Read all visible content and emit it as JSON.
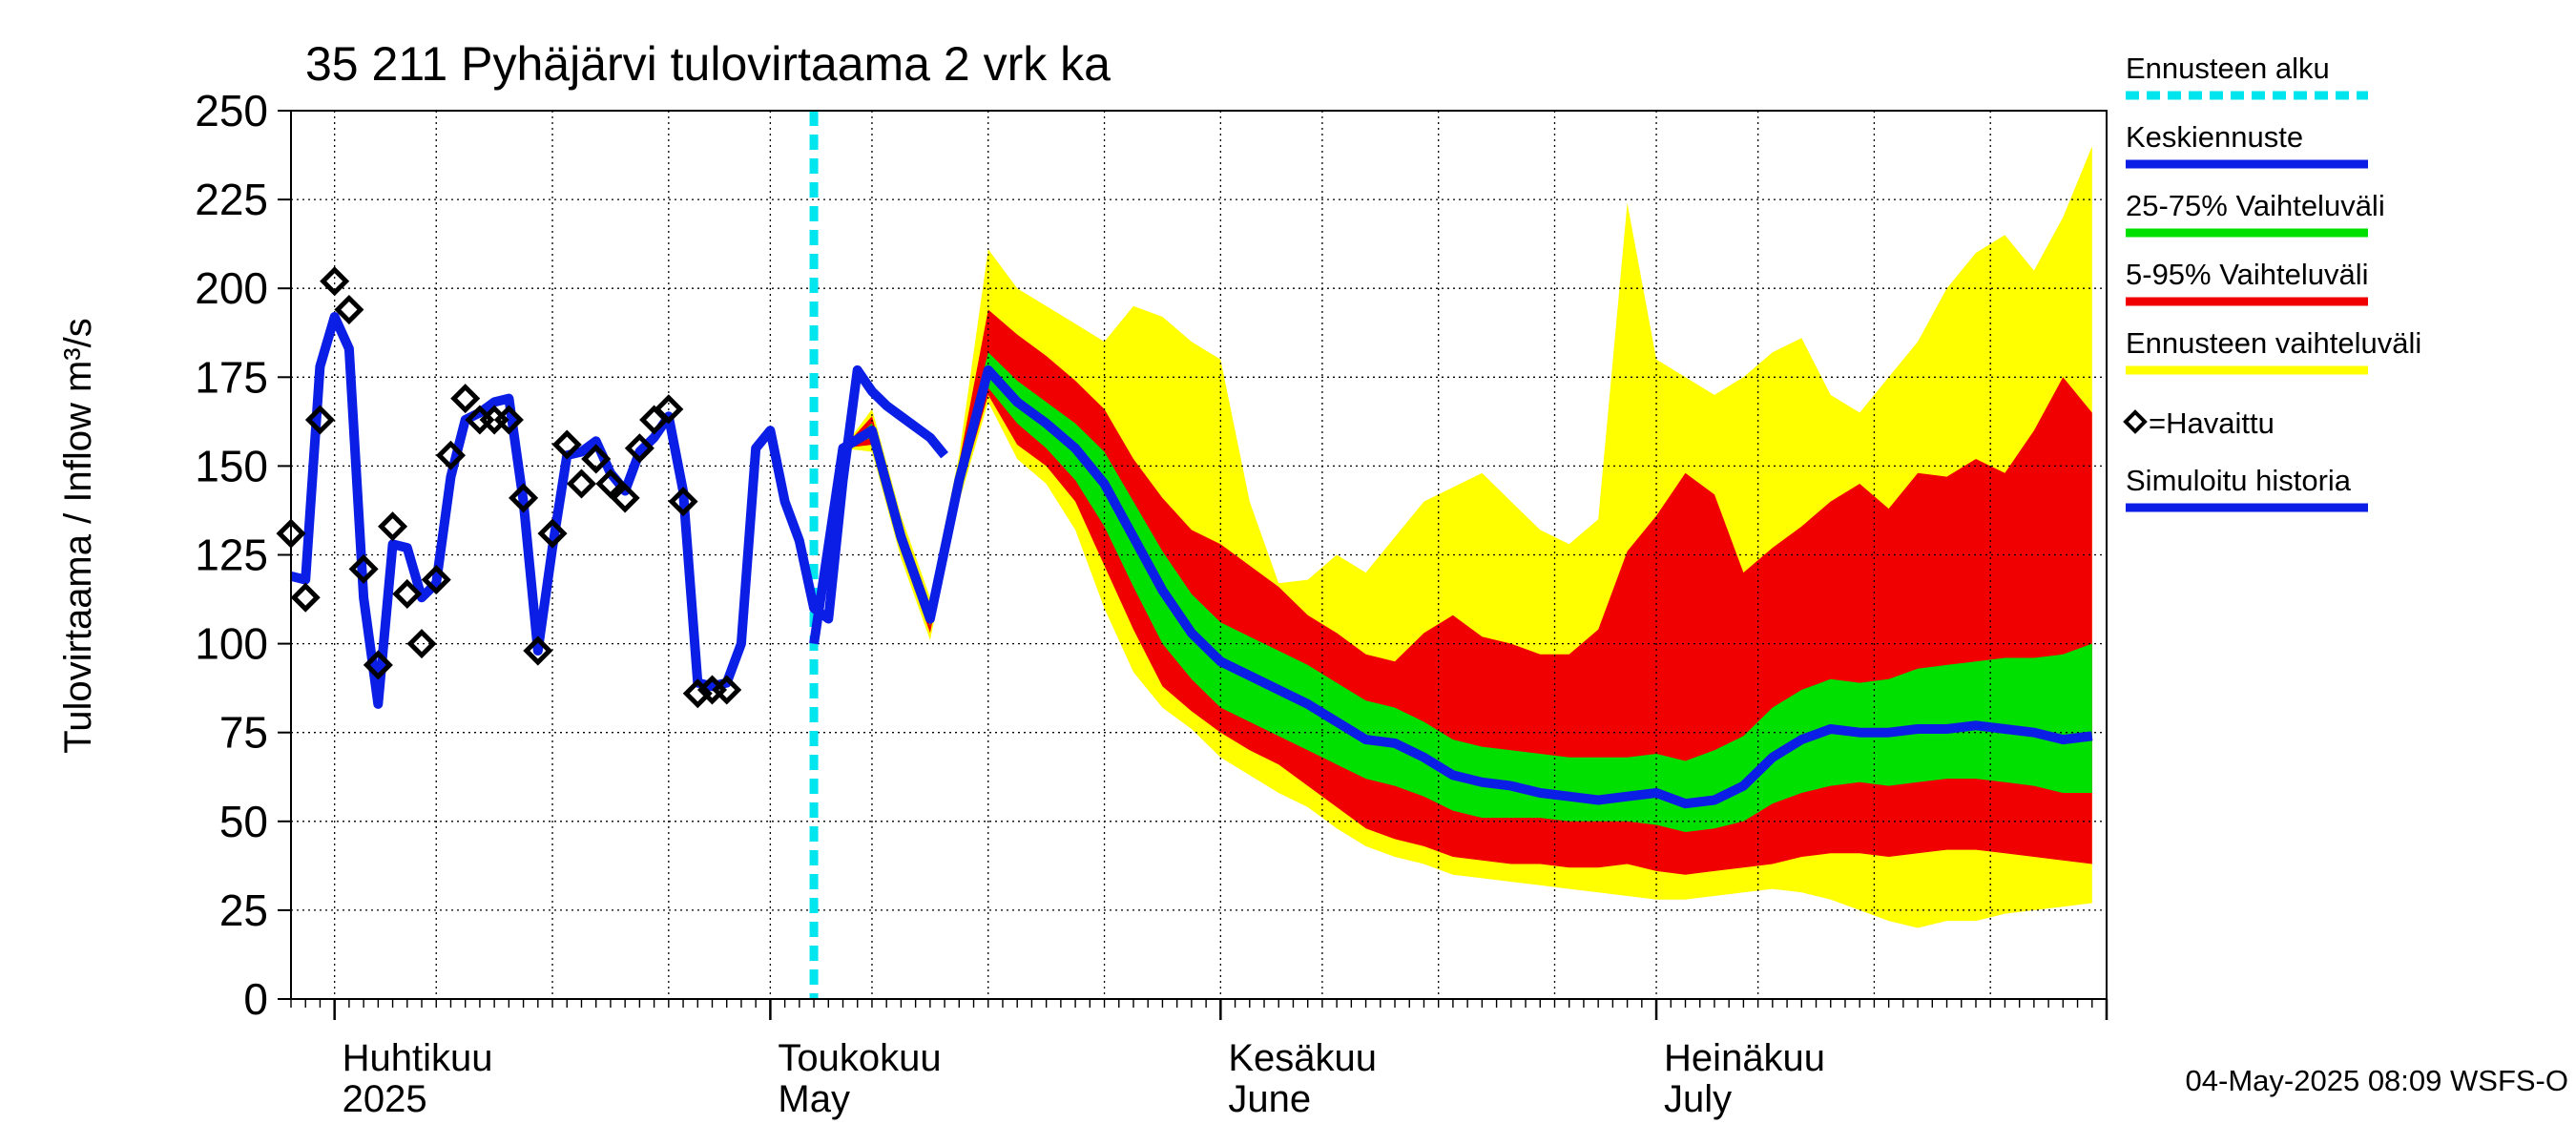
{
  "chart_data": {
    "type": "area",
    "title": "35 211 Pyhäjärvi tulovirtaama 2 vrk ka",
    "ylabel": "Tulovirtaama / Inflow    m³/s",
    "ylim": [
      0,
      250
    ],
    "yticks": [
      0,
      25,
      50,
      75,
      100,
      125,
      150,
      175,
      200,
      225,
      250
    ],
    "xlim": [
      "2025-03-29",
      "2025-08-01"
    ],
    "month_labels": [
      {
        "date": "2025-04-01",
        "fi": "Huhtikuu",
        "en": "2025"
      },
      {
        "date": "2025-05-01",
        "fi": "Toukokuu",
        "en": "May"
      },
      {
        "date": "2025-06-01",
        "fi": "Kesäkuu",
        "en": "June"
      },
      {
        "date": "2025-07-01",
        "fi": "Heinäkuu",
        "en": "July"
      }
    ],
    "grid": true,
    "legend_position": "right",
    "forecast_start": "2025-05-04",
    "timestamp": "04-May-2025 08:09 WSFS-O",
    "legend": [
      {
        "key": "forecast_start",
        "label": "Ennusteen alku",
        "color": "#00e5ee",
        "dashed": true
      },
      {
        "key": "median",
        "label": "Keskiennuste",
        "color": "#0a1ee6"
      },
      {
        "key": "band_25_75",
        "label": "25-75% Vaihteluväli",
        "color": "#00e000"
      },
      {
        "key": "band_5_95",
        "label": "5-95% Vaihteluväli",
        "color": "#f00000"
      },
      {
        "key": "band_full",
        "label": "Ennusteen vaihteluväli",
        "color": "#ffff00"
      },
      {
        "key": "observed",
        "label": "=Havaittu",
        "color": "#000000",
        "marker": "diamond"
      },
      {
        "key": "simulated",
        "label": "Simuloitu historia",
        "color": "#0a1ee6"
      }
    ],
    "simulated_history": {
      "x": [
        "2025-03-29",
        "2025-03-30",
        "2025-03-31",
        "2025-04-01",
        "2025-04-02",
        "2025-04-03",
        "2025-04-04",
        "2025-04-05",
        "2025-04-06",
        "2025-04-07",
        "2025-04-08",
        "2025-04-09",
        "2025-04-10",
        "2025-04-11",
        "2025-04-12",
        "2025-04-13",
        "2025-04-14",
        "2025-04-15",
        "2025-04-16",
        "2025-04-17",
        "2025-04-18",
        "2025-04-19",
        "2025-04-20",
        "2025-04-21",
        "2025-04-22",
        "2025-04-23",
        "2025-04-24",
        "2025-04-25",
        "2025-04-26",
        "2025-04-27",
        "2025-04-28",
        "2025-04-29",
        "2025-04-30",
        "2025-05-01",
        "2025-05-02",
        "2025-05-03",
        "2025-05-04",
        "2025-05-05",
        "2025-05-06",
        "2025-05-07",
        "2025-05-08",
        "2025-05-09",
        "2025-05-10",
        "2025-05-11",
        "2025-05-12",
        "2025-05-13"
      ],
      "y": [
        119,
        118,
        178,
        192,
        183,
        113,
        83,
        128,
        127,
        113,
        117,
        147,
        163,
        165,
        168,
        169,
        140,
        98,
        127,
        153,
        154,
        157,
        148,
        143,
        154,
        158,
        164,
        143,
        89,
        88,
        89,
        100,
        155,
        160,
        140,
        129,
        110,
        107,
        146,
        177,
        171,
        167,
        164,
        161,
        158,
        153
      ]
    },
    "observed": {
      "x": [
        "2025-03-29",
        "2025-03-30",
        "2025-03-31",
        "2025-04-01",
        "2025-04-02",
        "2025-04-03",
        "2025-04-04",
        "2025-04-05",
        "2025-04-06",
        "2025-04-07",
        "2025-04-08",
        "2025-04-09",
        "2025-04-10",
        "2025-04-11",
        "2025-04-12",
        "2025-04-13",
        "2025-04-14",
        "2025-04-15",
        "2025-04-16",
        "2025-04-17",
        "2025-04-18",
        "2025-04-19",
        "2025-04-20",
        "2025-04-21",
        "2025-04-22",
        "2025-04-23",
        "2025-04-24",
        "2025-04-25",
        "2025-04-26",
        "2025-04-27",
        "2025-04-28",
        "2025-04-29"
      ],
      "y": [
        131,
        113,
        163,
        202,
        194,
        121,
        94,
        133,
        114,
        100,
        118,
        153,
        169,
        163,
        163,
        163,
        141,
        98,
        131,
        156,
        145,
        152,
        145,
        141,
        155,
        163,
        166,
        140,
        86,
        87,
        87,
        null
      ]
    },
    "forecast": {
      "x": [
        "2025-05-04",
        "2025-05-06",
        "2025-05-08",
        "2025-05-10",
        "2025-05-12",
        "2025-05-14",
        "2025-05-16",
        "2025-05-18",
        "2025-05-20",
        "2025-05-22",
        "2025-05-24",
        "2025-05-26",
        "2025-05-28",
        "2025-05-30",
        "2025-06-01",
        "2025-06-03",
        "2025-06-05",
        "2025-06-07",
        "2025-06-09",
        "2025-06-11",
        "2025-06-13",
        "2025-06-15",
        "2025-06-17",
        "2025-06-19",
        "2025-06-21",
        "2025-06-23",
        "2025-06-25",
        "2025-06-27",
        "2025-06-29",
        "2025-07-01",
        "2025-07-03",
        "2025-07-05",
        "2025-07-07",
        "2025-07-09",
        "2025-07-11",
        "2025-07-13",
        "2025-07-15",
        "2025-07-17",
        "2025-07-19",
        "2025-07-21",
        "2025-07-23",
        "2025-07-25",
        "2025-07-27",
        "2025-07-29",
        "2025-07-31"
      ],
      "median": [
        100,
        155,
        160,
        130,
        107,
        146,
        177,
        168,
        162,
        155,
        145,
        130,
        115,
        103,
        95,
        91,
        87,
        83,
        78,
        73,
        72,
        68,
        63,
        61,
        60,
        58,
        57,
        56,
        57,
        58,
        55,
        56,
        60,
        68,
        73,
        76,
        75,
        75,
        76,
        76,
        77,
        76,
        75,
        73,
        74
      ],
      "p25": [
        100,
        155,
        158,
        128,
        105,
        144,
        172,
        162,
        155,
        146,
        133,
        116,
        100,
        90,
        82,
        78,
        74,
        70,
        66,
        62,
        60,
        57,
        53,
        51,
        51,
        51,
        50,
        50,
        50,
        49,
        47,
        48,
        50,
        55,
        58,
        60,
        61,
        60,
        61,
        62,
        62,
        61,
        60,
        58,
        58
      ],
      "p75": [
        100,
        155,
        162,
        132,
        109,
        149,
        182,
        174,
        168,
        162,
        154,
        140,
        126,
        114,
        106,
        102,
        98,
        94,
        89,
        84,
        82,
        78,
        73,
        71,
        70,
        69,
        68,
        68,
        68,
        69,
        67,
        70,
        74,
        82,
        87,
        90,
        89,
        90,
        93,
        94,
        95,
        96,
        96,
        97,
        100
      ],
      "p05": [
        100,
        155,
        156,
        126,
        103,
        142,
        170,
        156,
        150,
        140,
        122,
        104,
        88,
        81,
        75,
        70,
        66,
        60,
        54,
        48,
        45,
        43,
        40,
        39,
        38,
        38,
        37,
        37,
        38,
        36,
        35,
        36,
        37,
        38,
        40,
        41,
        41,
        40,
        41,
        42,
        42,
        41,
        40,
        39,
        38
      ],
      "p95": [
        100,
        155,
        164,
        134,
        111,
        151,
        194,
        187,
        181,
        174,
        166,
        152,
        141,
        132,
        128,
        122,
        116,
        108,
        103,
        97,
        95,
        103,
        108,
        102,
        100,
        97,
        97,
        104,
        126,
        136,
        148,
        142,
        120,
        127,
        133,
        140,
        145,
        138,
        148,
        147,
        152,
        148,
        160,
        175,
        165
      ],
      "min": [
        100,
        155,
        154,
        124,
        101,
        140,
        168,
        152,
        145,
        132,
        110,
        92,
        82,
        76,
        68,
        63,
        58,
        54,
        48,
        43,
        40,
        38,
        35,
        34,
        33,
        32,
        31,
        30,
        29,
        28,
        28,
        29,
        30,
        31,
        30,
        28,
        25,
        22,
        20,
        22,
        22,
        24,
        25,
        26,
        27
      ],
      "max": [
        100,
        155,
        166,
        136,
        113,
        153,
        211,
        200,
        195,
        190,
        185,
        195,
        192,
        185,
        180,
        140,
        117,
        118,
        125,
        120,
        130,
        140,
        144,
        148,
        140,
        132,
        128,
        135,
        224,
        180,
        175,
        170,
        175,
        182,
        186,
        170,
        165,
        175,
        185,
        200,
        210,
        215,
        205,
        220,
        240
      ]
    }
  }
}
